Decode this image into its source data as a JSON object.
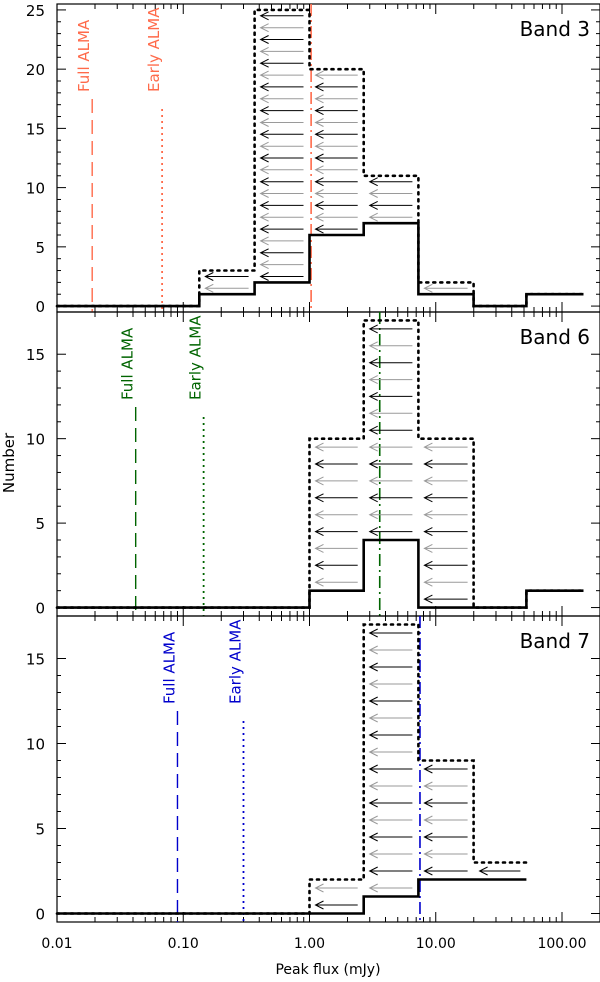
{
  "x_axis_label": "Peak flux (mJy)",
  "y_axis_label": "Number",
  "x_tick_labels": [
    "0.01",
    "0.10",
    "1.00",
    "10.00",
    "100.00"
  ],
  "line_labels": {
    "full": "Full ALMA",
    "early": "Early ALMA"
  },
  "colors": {
    "band3": "#ff6a4a",
    "band6": "#006400",
    "band7": "#0000cc",
    "arrow_grey": "#9a9a9a"
  },
  "chart_data": [
    {
      "type": "histogram",
      "title": "Band 3",
      "xscale": "log",
      "xlim": [
        0.01,
        200
      ],
      "ylim": [
        -0.5,
        25.5
      ],
      "yticks": [
        0,
        5,
        10,
        15,
        20,
        25
      ],
      "bin_edges": [
        0.01,
        0.134,
        0.3675,
        1.0,
        2.6865,
        7.29,
        19.95,
        52.2,
        148
      ],
      "detected_counts": [
        0,
        1,
        2,
        6,
        7,
        1,
        0,
        1
      ],
      "total_counts": [
        0,
        3,
        25,
        20,
        11,
        2,
        0,
        1
      ],
      "full_alma_limit": 0.019,
      "early_alma_limit": 0.068,
      "dashdot_line": 1.03,
      "color_key": "band3"
    },
    {
      "type": "histogram",
      "title": "Band 6",
      "xscale": "log",
      "xlim": [
        0.01,
        200
      ],
      "ylim": [
        -0.5,
        17.5
      ],
      "yticks": [
        0,
        5,
        10,
        15
      ],
      "bin_edges": [
        0.01,
        1.0,
        2.6865,
        7.29,
        19.95,
        52.2,
        148
      ],
      "detected_counts": [
        0,
        1,
        4,
        0,
        0,
        1
      ],
      "total_counts": [
        0,
        10,
        17,
        10,
        0,
        1
      ],
      "full_alma_limit": 0.042,
      "early_alma_limit": 0.145,
      "dashdot_line": 3.6,
      "color_key": "band6"
    },
    {
      "type": "histogram",
      "title": "Band 7",
      "xscale": "log",
      "xlim": [
        0.01,
        200
      ],
      "ylim": [
        -0.5,
        17.5
      ],
      "yticks": [
        0,
        5,
        10,
        15
      ],
      "bin_edges": [
        0.01,
        1.0,
        2.6865,
        7.29,
        19.95,
        52.2
      ],
      "detected_counts": [
        0,
        0,
        1,
        2,
        2
      ],
      "total_counts": [
        0,
        2,
        17,
        9,
        3
      ],
      "full_alma_limit": 0.09,
      "early_alma_limit": 0.3,
      "dashdot_line": 7.5,
      "color_key": "band7"
    }
  ]
}
